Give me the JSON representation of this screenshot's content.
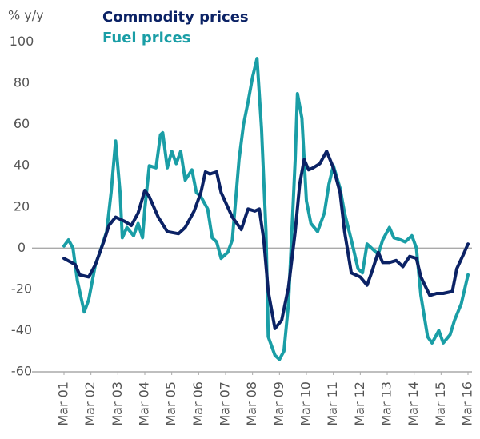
{
  "chart_data": {
    "type": "line",
    "ylabel": "% y/y",
    "xlim": [
      0,
      180
    ],
    "xticks": [
      {
        "value": 0,
        "label": "Mar 01"
      },
      {
        "value": 12,
        "label": "Mar 02"
      },
      {
        "value": 24,
        "label": "Mar 03"
      },
      {
        "value": 36,
        "label": "Mar 04"
      },
      {
        "value": 48,
        "label": "Mar 05"
      },
      {
        "value": 60,
        "label": "Mar 06"
      },
      {
        "value": 72,
        "label": "Mar 07"
      },
      {
        "value": 84,
        "label": "Mar 08"
      },
      {
        "value": 96,
        "label": "Mar 09"
      },
      {
        "value": 108,
        "label": "Mar 10"
      },
      {
        "value": 120,
        "label": "Mar 11"
      },
      {
        "value": 132,
        "label": "Mar 12"
      },
      {
        "value": 144,
        "label": "Mar 13"
      },
      {
        "value": 156,
        "label": "Mar 14"
      },
      {
        "value": 168,
        "label": "Mar 15"
      },
      {
        "value": 180,
        "label": "Mar 16"
      }
    ],
    "ylim": [
      -60,
      100
    ],
    "yticks": [
      -60,
      -40,
      -20,
      0,
      20,
      40,
      60,
      80,
      100
    ],
    "series": [
      {
        "name": "Commodity prices",
        "color": "#0b2265",
        "x": [
          0,
          5,
          7,
          11,
          14,
          18,
          20,
          23,
          27,
          30,
          33,
          36,
          38,
          42,
          46,
          51,
          54,
          58,
          61,
          63,
          65,
          68,
          70,
          75,
          79,
          82,
          85,
          87,
          89,
          91,
          94,
          97,
          100,
          103,
          105,
          107,
          109,
          111,
          114,
          117,
          120,
          123,
          125,
          128,
          132,
          135,
          137,
          140,
          142,
          145,
          148,
          151,
          154,
          157,
          159,
          163,
          166,
          169,
          173,
          175,
          178,
          180
        ],
        "values": [
          -5,
          -8,
          -13,
          -14,
          -8,
          4,
          11,
          15,
          13,
          11,
          17,
          28,
          25,
          15,
          8,
          7,
          10,
          18,
          27,
          37,
          36,
          37,
          27,
          15,
          9,
          19,
          18,
          19,
          4,
          -21,
          -39,
          -35,
          -19,
          8,
          31,
          43,
          38,
          39,
          41,
          47,
          39,
          27,
          8,
          -12,
          -14,
          -18,
          -12,
          -2,
          -7,
          -7,
          -6,
          -9,
          -4,
          -5,
          -14,
          -23,
          -22,
          -22,
          -21,
          -10,
          -3,
          2
        ]
      },
      {
        "name": "Fuel prices",
        "color": "#1a9ea6",
        "x": [
          0,
          2,
          4,
          6,
          9,
          11,
          14,
          16,
          19,
          21,
          23,
          25,
          26,
          28,
          31,
          33,
          35,
          36,
          38,
          41,
          43,
          44,
          46,
          48,
          50,
          52,
          54,
          57,
          59,
          61,
          64,
          66,
          68,
          70,
          73,
          75,
          78,
          80,
          82,
          84,
          86,
          88,
          90,
          91,
          94,
          96,
          98,
          100,
          103,
          104,
          106,
          108,
          110,
          113,
          116,
          118,
          120,
          123,
          125,
          128,
          131,
          133,
          135,
          138,
          140,
          142,
          145,
          147,
          150,
          152,
          155,
          157,
          159,
          162,
          164,
          167,
          169,
          172,
          174,
          177,
          180
        ],
        "values": [
          1,
          4,
          0,
          -16,
          -31,
          -25,
          -8,
          -2,
          8,
          27,
          52,
          27,
          5,
          10,
          6,
          12,
          5,
          19,
          40,
          39,
          55,
          56,
          39,
          47,
          41,
          47,
          33,
          38,
          27,
          25,
          19,
          5,
          3,
          -5,
          -2,
          4,
          43,
          60,
          71,
          83,
          92,
          58,
          8,
          -43,
          -52,
          -54,
          -50,
          -27,
          43,
          75,
          63,
          23,
          12,
          8,
          17,
          31,
          40,
          29,
          17,
          4,
          -10,
          -12,
          2,
          -1,
          -3,
          4,
          10,
          5,
          4,
          3,
          6,
          0,
          -23,
          -43,
          -46,
          -40,
          -46,
          -42,
          -35,
          -27,
          -13
        ]
      }
    ]
  }
}
